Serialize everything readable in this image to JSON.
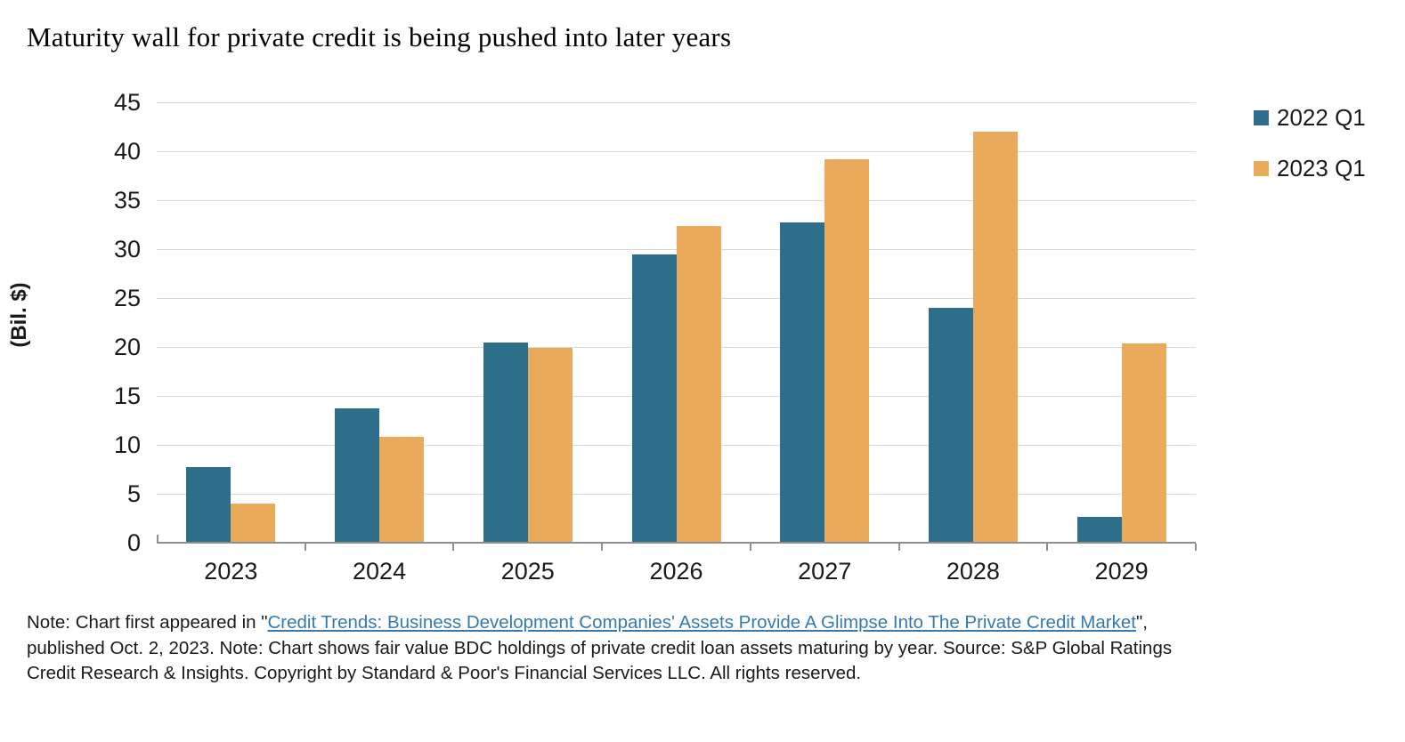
{
  "title": "Maturity wall for private credit is being pushed into later years",
  "chart_data": {
    "type": "bar",
    "title": "Maturity wall for private credit is being pushed into later years",
    "categories": [
      "2023",
      "2024",
      "2025",
      "2026",
      "2027",
      "2028",
      "2029"
    ],
    "series": [
      {
        "name": "2022 Q1",
        "color": "#2d6e8a",
        "values": [
          7.7,
          13.7,
          20.5,
          29.5,
          32.7,
          24.0,
          2.6
        ]
      },
      {
        "name": "2023 Q1",
        "color": "#e9aa5c",
        "values": [
          4.0,
          10.8,
          19.9,
          32.4,
          39.2,
          42.0,
          20.4
        ]
      }
    ],
    "xlabel": "",
    "ylabel": "(Bil. $)",
    "ylim": [
      0,
      45
    ],
    "ytick_step": 5,
    "grid": true,
    "legend_position": "right"
  },
  "footer": {
    "pre": "Note: Chart first appeared in \"",
    "link": "Credit Trends: Business Development Companies' Assets Provide A Glimpse Into The Private Credit Market",
    "post": "\", published Oct. 2, 2023. Note: Chart shows fair value BDC holdings of private credit loan assets maturing by year. Source: S&P Global Ratings Credit Research & Insights. Copyright by Standard & Poor's Financial Services LLC. All rights reserved."
  },
  "colors": {
    "series_2022_q1": "#2d6e8a",
    "series_2023_q1": "#e9aa5c",
    "link": "#367aad",
    "gridline": "#d9d9d9",
    "axis": "#8f8f8f",
    "text": "#1a1a1a"
  }
}
